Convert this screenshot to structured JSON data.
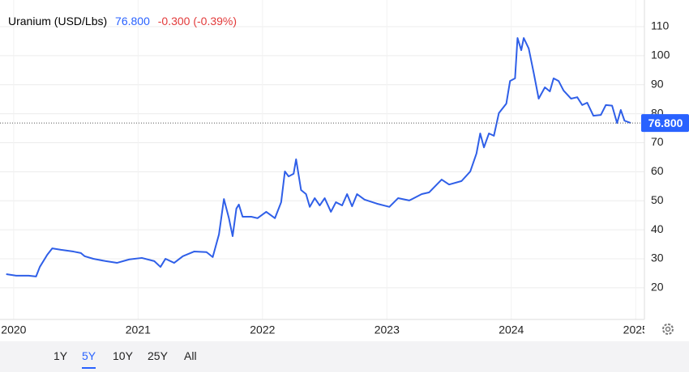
{
  "chart_data": {
    "type": "line",
    "title": "Uranium (USD/Lbs)",
    "last": {
      "value": 76.8,
      "label": "76.800"
    },
    "change": "-0.300 (-0.39%)",
    "color": "#2f5fe8",
    "last_color": "#2962ff",
    "change_color": "#e23a3a",
    "x": [
      2019.94,
      2020.02,
      2020.12,
      2020.18,
      2020.21,
      2020.27,
      2020.31,
      2020.38,
      2020.48,
      2020.54,
      2020.57,
      2020.64,
      2020.74,
      2020.83,
      2020.93,
      2021.03,
      2021.13,
      2021.18,
      2021.22,
      2021.29,
      2021.36,
      2021.45,
      2021.55,
      2021.6,
      2021.65,
      2021.69,
      2021.73,
      2021.76,
      2021.79,
      2021.81,
      2021.84,
      2021.91,
      2021.96,
      2022.03,
      2022.1,
      2022.15,
      2022.18,
      2022.21,
      2022.25,
      2022.27,
      2022.31,
      2022.35,
      2022.38,
      2022.42,
      2022.46,
      2022.5,
      2022.55,
      2022.59,
      2022.64,
      2022.68,
      2022.72,
      2022.76,
      2022.82,
      2022.92,
      2023.02,
      2023.09,
      2023.18,
      2023.28,
      2023.34,
      2023.44,
      2023.5,
      2023.6,
      2023.67,
      2023.72,
      2023.75,
      2023.78,
      2023.82,
      2023.86,
      2023.9,
      2023.96,
      2023.99,
      2024.03,
      2024.05,
      2024.08,
      2024.1,
      2024.14,
      2024.18,
      2024.22,
      2024.27,
      2024.31,
      2024.34,
      2024.38,
      2024.42,
      2024.48,
      2024.53,
      2024.57,
      2024.61,
      2024.66,
      2024.72,
      2024.76,
      2024.81,
      2024.85,
      2024.88,
      2024.91,
      2024.96
    ],
    "values": [
      24.7,
      24.2,
      24.2,
      23.9,
      27.2,
      31.4,
      33.6,
      33.1,
      32.5,
      32.0,
      30.9,
      30.0,
      29.2,
      28.6,
      29.8,
      30.3,
      29.2,
      27.2,
      30.0,
      28.6,
      30.9,
      32.5,
      32.3,
      30.6,
      38.4,
      50.6,
      44.0,
      37.8,
      47.3,
      48.7,
      44.5,
      44.5,
      44.0,
      46.2,
      44.0,
      49.5,
      60.1,
      58.4,
      59.3,
      64.3,
      53.7,
      52.3,
      47.9,
      50.9,
      48.4,
      50.9,
      46.2,
      49.5,
      48.4,
      52.3,
      48.1,
      52.3,
      50.4,
      49.0,
      47.9,
      50.9,
      50.1,
      52.3,
      52.9,
      57.3,
      55.6,
      56.8,
      60.1,
      66.3,
      73.2,
      68.4,
      73.2,
      72.4,
      80.2,
      83.5,
      91.3,
      92.2,
      106.1,
      101.9,
      106.1,
      102.5,
      94.1,
      85.2,
      89.1,
      87.7,
      92.2,
      91.3,
      88.0,
      85.2,
      85.7,
      83.0,
      83.8,
      79.3,
      79.6,
      83.0,
      82.8,
      76.8,
      81.3,
      77.6,
      76.8
    ],
    "xlim": [
      2019.89,
      2025.07
    ],
    "xticks": [
      2020,
      2021,
      2022,
      2023,
      2024,
      2025
    ],
    "ylim": [
      9.1,
      119.2
    ],
    "yticks": [
      20,
      30,
      40,
      50,
      60,
      70,
      80,
      90,
      100,
      110
    ],
    "grid": true,
    "ranges": [
      "1Y",
      "5Y",
      "10Y",
      "25Y",
      "All"
    ],
    "selected_range": 1
  }
}
